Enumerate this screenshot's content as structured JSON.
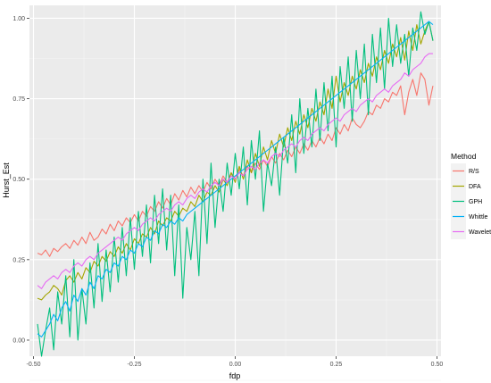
{
  "chart_data": {
    "type": "line",
    "title": "",
    "xlabel": "fdp",
    "ylabel": "Hurst_Est",
    "xlim": [
      -0.51,
      0.51
    ],
    "ylim": [
      -0.05,
      1.04
    ],
    "x_ticks": [
      -0.5,
      -0.25,
      0.0,
      0.25,
      0.5
    ],
    "x_tick_labels": [
      "-0.50",
      "-0.25",
      "0.00",
      "0.25",
      "0.50"
    ],
    "y_ticks": [
      0.0,
      0.25,
      0.5,
      0.75,
      1.0
    ],
    "y_tick_labels": [
      "0.00",
      "0.25",
      "0.50",
      "0.75",
      "1.00"
    ],
    "grid": true,
    "legend": {
      "title": "Method",
      "position": "right"
    },
    "x": [
      -0.49,
      -0.48,
      -0.47,
      -0.46,
      -0.45,
      -0.44,
      -0.43,
      -0.42,
      -0.41,
      -0.4,
      -0.39,
      -0.38,
      -0.37,
      -0.36,
      -0.35,
      -0.34,
      -0.33,
      -0.32,
      -0.31,
      -0.3,
      -0.29,
      -0.28,
      -0.27,
      -0.26,
      -0.25,
      -0.24,
      -0.23,
      -0.22,
      -0.21,
      -0.2,
      -0.19,
      -0.18,
      -0.17,
      -0.16,
      -0.15,
      -0.14,
      -0.13,
      -0.12,
      -0.11,
      -0.1,
      -0.09,
      -0.08,
      -0.07,
      -0.06,
      -0.05,
      -0.04,
      -0.03,
      -0.02,
      -0.01,
      0.0,
      0.01,
      0.02,
      0.03,
      0.04,
      0.05,
      0.06,
      0.07,
      0.08,
      0.09,
      0.1,
      0.11,
      0.12,
      0.13,
      0.14,
      0.15,
      0.16,
      0.17,
      0.18,
      0.19,
      0.2,
      0.21,
      0.22,
      0.23,
      0.24,
      0.25,
      0.26,
      0.27,
      0.28,
      0.29,
      0.3,
      0.31,
      0.32,
      0.33,
      0.34,
      0.35,
      0.36,
      0.37,
      0.38,
      0.39,
      0.4,
      0.41,
      0.42,
      0.43,
      0.44,
      0.45,
      0.46,
      0.47,
      0.48,
      0.49
    ],
    "series": [
      {
        "name": "R/S",
        "color": "#F8766D",
        "values": [
          0.27,
          0.265,
          0.28,
          0.26,
          0.285,
          0.275,
          0.29,
          0.3,
          0.285,
          0.31,
          0.295,
          0.32,
          0.3,
          0.335,
          0.31,
          0.32,
          0.345,
          0.33,
          0.36,
          0.34,
          0.37,
          0.355,
          0.38,
          0.365,
          0.39,
          0.37,
          0.4,
          0.385,
          0.415,
          0.4,
          0.43,
          0.41,
          0.44,
          0.42,
          0.455,
          0.435,
          0.465,
          0.445,
          0.475,
          0.455,
          0.48,
          0.46,
          0.49,
          0.47,
          0.5,
          0.48,
          0.51,
          0.49,
          0.52,
          0.5,
          0.53,
          0.51,
          0.54,
          0.52,
          0.55,
          0.53,
          0.56,
          0.54,
          0.57,
          0.55,
          0.58,
          0.56,
          0.59,
          0.57,
          0.6,
          0.58,
          0.61,
          0.59,
          0.62,
          0.6,
          0.63,
          0.61,
          0.64,
          0.62,
          0.66,
          0.64,
          0.67,
          0.65,
          0.69,
          0.67,
          0.66,
          0.68,
          0.71,
          0.7,
          0.73,
          0.72,
          0.75,
          0.74,
          0.77,
          0.76,
          0.79,
          0.7,
          0.77,
          0.81,
          0.76,
          0.83,
          0.81,
          0.73,
          0.79
        ]
      },
      {
        "name": "DFA",
        "color": "#A3A500",
        "values": [
          0.13,
          0.125,
          0.14,
          0.15,
          0.17,
          0.16,
          0.14,
          0.185,
          0.2,
          0.18,
          0.21,
          0.19,
          0.225,
          0.21,
          0.245,
          0.23,
          0.26,
          0.245,
          0.275,
          0.26,
          0.29,
          0.27,
          0.3,
          0.28,
          0.315,
          0.3,
          0.33,
          0.32,
          0.35,
          0.33,
          0.37,
          0.355,
          0.38,
          0.37,
          0.4,
          0.385,
          0.41,
          0.4,
          0.43,
          0.415,
          0.45,
          0.43,
          0.46,
          0.45,
          0.48,
          0.46,
          0.5,
          0.48,
          0.52,
          0.49,
          0.54,
          0.5,
          0.56,
          0.52,
          0.58,
          0.54,
          0.6,
          0.56,
          0.62,
          0.58,
          0.64,
          0.6,
          0.66,
          0.62,
          0.68,
          0.64,
          0.7,
          0.66,
          0.72,
          0.68,
          0.74,
          0.7,
          0.78,
          0.72,
          0.82,
          0.74,
          0.8,
          0.76,
          0.82,
          0.78,
          0.84,
          0.8,
          0.86,
          0.82,
          0.88,
          0.84,
          0.9,
          0.86,
          0.92,
          0.88,
          0.94,
          0.87,
          0.96,
          0.9,
          0.98,
          0.92,
          0.96,
          0.99,
          0.93
        ]
      },
      {
        "name": "GPH",
        "color": "#00BF7D",
        "values": [
          0.05,
          -0.05,
          0.03,
          0.1,
          -0.03,
          0.15,
          0.05,
          0.2,
          0.01,
          0.25,
          0.0,
          0.16,
          0.05,
          0.24,
          0.1,
          0.3,
          0.12,
          0.28,
          0.15,
          0.32,
          0.18,
          0.35,
          0.2,
          0.38,
          0.22,
          0.4,
          0.26,
          0.42,
          0.24,
          0.45,
          0.3,
          0.47,
          0.28,
          0.45,
          0.2,
          0.42,
          0.13,
          0.35,
          0.25,
          0.4,
          0.2,
          0.5,
          0.3,
          0.55,
          0.35,
          0.5,
          0.4,
          0.55,
          0.45,
          0.58,
          0.47,
          0.6,
          0.42,
          0.62,
          0.5,
          0.65,
          0.4,
          0.55,
          0.48,
          0.6,
          0.45,
          0.63,
          0.55,
          0.7,
          0.52,
          0.75,
          0.58,
          0.72,
          0.6,
          0.78,
          0.62,
          0.8,
          0.65,
          0.82,
          0.6,
          0.85,
          0.72,
          0.88,
          0.68,
          0.9,
          0.75,
          0.92,
          0.7,
          0.95,
          0.8,
          0.97,
          0.78,
          1.0,
          0.85,
          0.98,
          0.86,
          0.95,
          0.82,
          0.97,
          0.9,
          1.02,
          0.95,
          0.99,
          0.93
        ]
      },
      {
        "name": "Whittle",
        "color": "#00B0F6",
        "values": [
          0.02,
          0.01,
          0.03,
          0.05,
          0.08,
          0.06,
          0.1,
          0.12,
          0.09,
          0.14,
          0.12,
          0.16,
          0.14,
          0.18,
          0.16,
          0.2,
          0.19,
          0.22,
          0.21,
          0.24,
          0.23,
          0.26,
          0.25,
          0.28,
          0.27,
          0.3,
          0.29,
          0.32,
          0.31,
          0.34,
          0.33,
          0.36,
          0.35,
          0.37,
          0.36,
          0.38,
          0.37,
          0.39,
          0.4,
          0.41,
          0.42,
          0.43,
          0.44,
          0.45,
          0.46,
          0.47,
          0.48,
          0.49,
          0.5,
          0.51,
          0.52,
          0.53,
          0.54,
          0.55,
          0.56,
          0.57,
          0.58,
          0.59,
          0.6,
          0.61,
          0.62,
          0.63,
          0.64,
          0.65,
          0.66,
          0.67,
          0.68,
          0.69,
          0.7,
          0.71,
          0.72,
          0.73,
          0.74,
          0.75,
          0.76,
          0.77,
          0.78,
          0.79,
          0.8,
          0.81,
          0.82,
          0.83,
          0.84,
          0.85,
          0.86,
          0.87,
          0.88,
          0.89,
          0.9,
          0.91,
          0.92,
          0.93,
          0.94,
          0.95,
          0.96,
          0.97,
          0.98,
          0.99,
          0.98
        ]
      },
      {
        "name": "Wavelet",
        "color": "#E76BF3",
        "values": [
          0.17,
          0.16,
          0.18,
          0.19,
          0.2,
          0.19,
          0.21,
          0.22,
          0.21,
          0.23,
          0.24,
          0.23,
          0.25,
          0.26,
          0.25,
          0.27,
          0.28,
          0.29,
          0.3,
          0.31,
          0.32,
          0.31,
          0.33,
          0.34,
          0.35,
          0.34,
          0.36,
          0.37,
          0.38,
          0.37,
          0.39,
          0.4,
          0.41,
          0.4,
          0.42,
          0.43,
          0.42,
          0.44,
          0.45,
          0.44,
          0.46,
          0.47,
          0.46,
          0.48,
          0.49,
          0.48,
          0.5,
          0.49,
          0.51,
          0.5,
          0.52,
          0.51,
          0.53,
          0.54,
          0.53,
          0.55,
          0.56,
          0.55,
          0.57,
          0.58,
          0.57,
          0.59,
          0.6,
          0.61,
          0.6,
          0.62,
          0.63,
          0.62,
          0.64,
          0.65,
          0.66,
          0.65,
          0.67,
          0.68,
          0.69,
          0.68,
          0.7,
          0.71,
          0.72,
          0.71,
          0.73,
          0.74,
          0.75,
          0.74,
          0.76,
          0.77,
          0.78,
          0.77,
          0.79,
          0.8,
          0.81,
          0.83,
          0.82,
          0.84,
          0.85,
          0.86,
          0.88,
          0.89,
          0.89
        ]
      }
    ]
  }
}
